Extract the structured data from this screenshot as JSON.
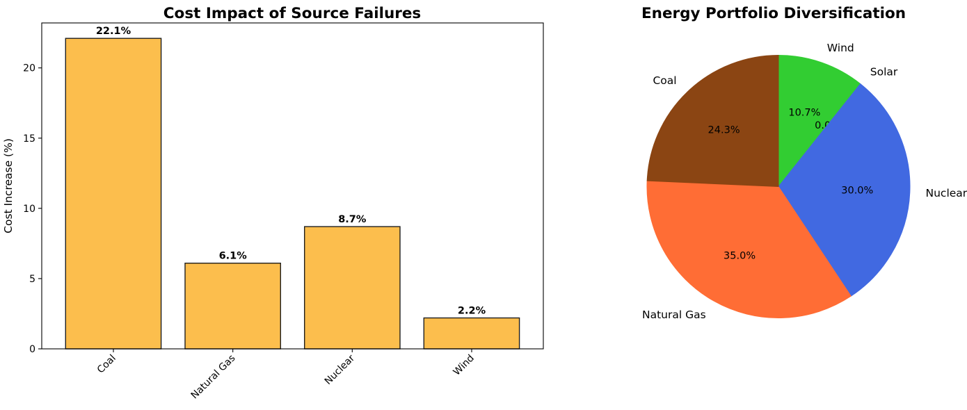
{
  "figure": {
    "background": "#ffffff",
    "text_color": "#000000"
  },
  "chart_data": [
    {
      "type": "bar",
      "title": "Cost Impact of Source Failures",
      "ylabel": "Cost Increase (%)",
      "xlabel": "",
      "categories": [
        "Coal",
        "Natural Gas",
        "Nuclear",
        "Wind"
      ],
      "values": [
        22.1,
        6.1,
        8.7,
        2.2
      ],
      "bar_labels": [
        "22.1%",
        "6.1%",
        "8.7%",
        "2.2%"
      ],
      "yticks": [
        0,
        5,
        10,
        15,
        20
      ],
      "ylim": [
        0,
        23.2
      ],
      "xlim": [
        -0.6,
        3.6
      ],
      "bar_width_units": 0.8,
      "grid": false,
      "legend": "none",
      "x_tick_rotation_deg": 45,
      "bar_color": "#FCBE4D",
      "bar_edge_color": "#1f1f1f"
    },
    {
      "type": "pie",
      "title": "Energy Portfolio Diversification",
      "labels": [
        "Wind",
        "Solar",
        "Nuclear",
        "Natural Gas",
        "Coal"
      ],
      "values": [
        10.7,
        0.0,
        30.0,
        35.0,
        24.3
      ],
      "percent_labels": [
        "10.7%",
        "0.0%",
        "30.0%",
        "35.0%",
        "24.3%"
      ],
      "colors": [
        "#32CD32",
        null,
        "#4169E1",
        "#FF6D35",
        "#8B4513"
      ],
      "start_angle_deg": 90,
      "counterclock": false,
      "label_distance": 1.12,
      "pct_distance": 0.6,
      "legend": "none"
    }
  ]
}
